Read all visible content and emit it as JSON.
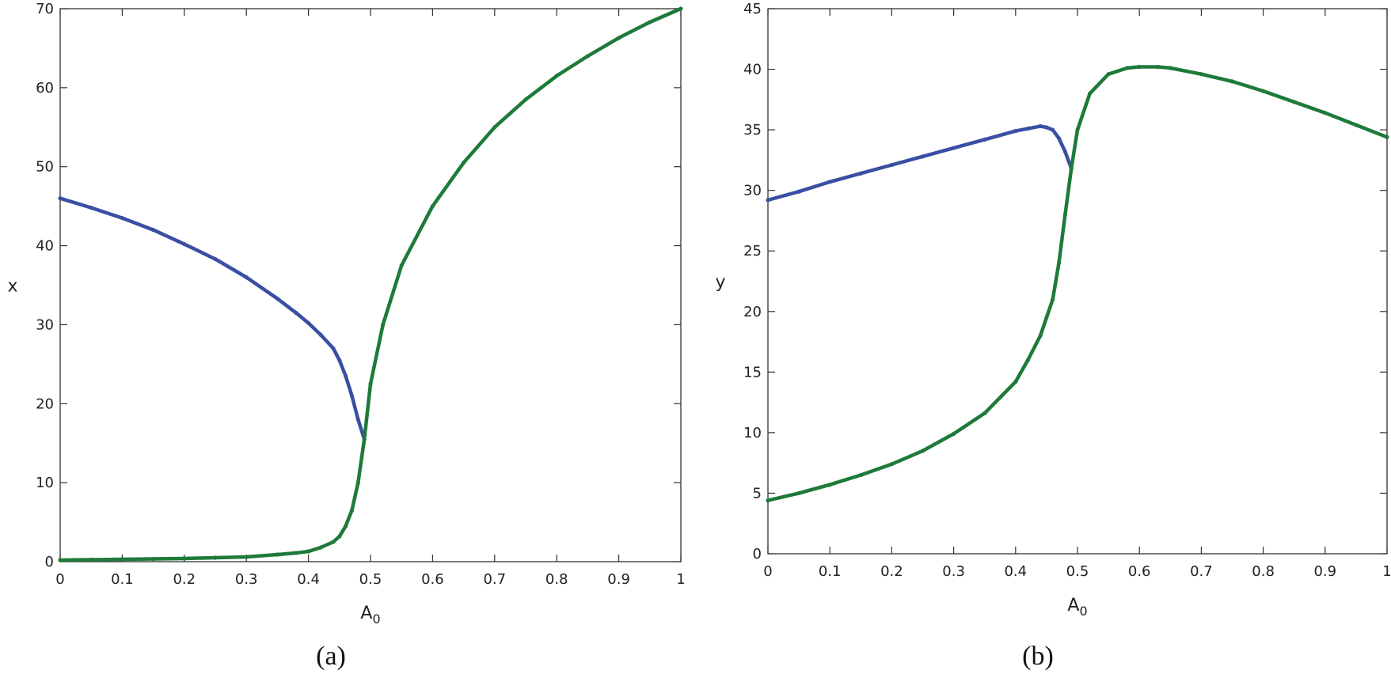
{
  "chart_data": [
    {
      "type": "scatter",
      "caption": "(a)",
      "xlabel": "A",
      "xlabel_sub": "0",
      "ylabel": "x",
      "xlim": [
        0,
        1
      ],
      "ylim": [
        0,
        70
      ],
      "x_ticks": [
        0,
        0.1,
        0.2,
        0.3,
        0.4,
        0.5,
        0.6,
        0.7,
        0.8,
        0.9,
        1
      ],
      "x_tick_labels": [
        "0",
        "0.1",
        "0.2",
        "0.3",
        "0.4",
        "0.5",
        "0.6",
        "0.7",
        "0.8",
        "0.9",
        "1"
      ],
      "y_ticks": [
        0,
        10,
        20,
        30,
        40,
        50,
        60,
        70
      ],
      "y_tick_labels": [
        "0",
        "10",
        "20",
        "30",
        "40",
        "50",
        "60",
        "70"
      ],
      "grid": false,
      "series": [
        {
          "color": "#3a4fa3",
          "x": [
            0,
            0.05,
            0.1,
            0.15,
            0.2,
            0.25,
            0.3,
            0.35,
            0.38,
            0.4,
            0.42,
            0.44,
            0.45,
            0.46,
            0.47,
            0.48,
            0.49
          ],
          "y": [
            46,
            44.8,
            43.5,
            42,
            40.2,
            38.3,
            36,
            33.3,
            31.5,
            30.2,
            28.7,
            27,
            25.5,
            23.5,
            21,
            18,
            15.5
          ]
        },
        {
          "color": "#1e7a3a",
          "x": [
            0,
            0.05,
            0.1,
            0.15,
            0.2,
            0.25,
            0.3,
            0.35,
            0.38,
            0.4,
            0.42,
            0.44,
            0.45,
            0.46,
            0.47,
            0.48,
            0.49,
            0.5,
            0.52,
            0.55,
            0.6,
            0.65,
            0.7,
            0.75,
            0.8,
            0.85,
            0.9,
            0.95,
            1
          ],
          "y": [
            0.2,
            0.25,
            0.3,
            0.35,
            0.4,
            0.5,
            0.6,
            0.9,
            1.1,
            1.3,
            1.8,
            2.5,
            3.2,
            4.5,
            6.5,
            10,
            15.5,
            22.5,
            30,
            37.5,
            45,
            50.5,
            55,
            58.5,
            61.5,
            64,
            66.3,
            68.3,
            70
          ]
        }
      ]
    },
    {
      "type": "scatter",
      "caption": "(b)",
      "xlabel": "A",
      "xlabel_sub": "0",
      "ylabel": "y",
      "xlim": [
        0,
        1
      ],
      "ylim": [
        0,
        45
      ],
      "x_ticks": [
        0,
        0.1,
        0.2,
        0.3,
        0.4,
        0.5,
        0.6,
        0.7,
        0.8,
        0.9,
        1
      ],
      "x_tick_labels": [
        "0",
        "0.1",
        "0.2",
        "0.3",
        "0.4",
        "0.5",
        "0.6",
        "0.7",
        "0.8",
        "0.9",
        "1"
      ],
      "y_ticks": [
        0,
        5,
        10,
        15,
        20,
        25,
        30,
        35,
        40,
        45
      ],
      "y_tick_labels": [
        "0",
        "5",
        "10",
        "15",
        "20",
        "25",
        "30",
        "35",
        "40",
        "45"
      ],
      "grid": false,
      "series": [
        {
          "color": "#3a4fa3",
          "x": [
            0,
            0.05,
            0.1,
            0.15,
            0.2,
            0.25,
            0.3,
            0.35,
            0.4,
            0.42,
            0.44,
            0.45,
            0.46,
            0.47,
            0.48,
            0.49
          ],
          "y": [
            29.2,
            29.9,
            30.7,
            31.4,
            32.1,
            32.8,
            33.5,
            34.2,
            34.9,
            35.1,
            35.3,
            35.2,
            35,
            34.3,
            33.2,
            31.8
          ]
        },
        {
          "color": "#1e7a3a",
          "x": [
            0,
            0.05,
            0.1,
            0.15,
            0.2,
            0.25,
            0.3,
            0.35,
            0.4,
            0.42,
            0.44,
            0.45,
            0.46,
            0.47,
            0.48,
            0.49,
            0.5,
            0.52,
            0.55,
            0.58,
            0.6,
            0.63,
            0.65,
            0.7,
            0.75,
            0.8,
            0.85,
            0.9,
            0.95,
            1
          ],
          "y": [
            4.4,
            5,
            5.7,
            6.5,
            7.4,
            8.5,
            9.9,
            11.6,
            14.2,
            16,
            18,
            19.5,
            21,
            24,
            28,
            31.8,
            35,
            38,
            39.6,
            40.1,
            40.2,
            40.2,
            40.1,
            39.6,
            39,
            38.2,
            37.3,
            36.4,
            35.4,
            34.4
          ]
        }
      ]
    }
  ]
}
